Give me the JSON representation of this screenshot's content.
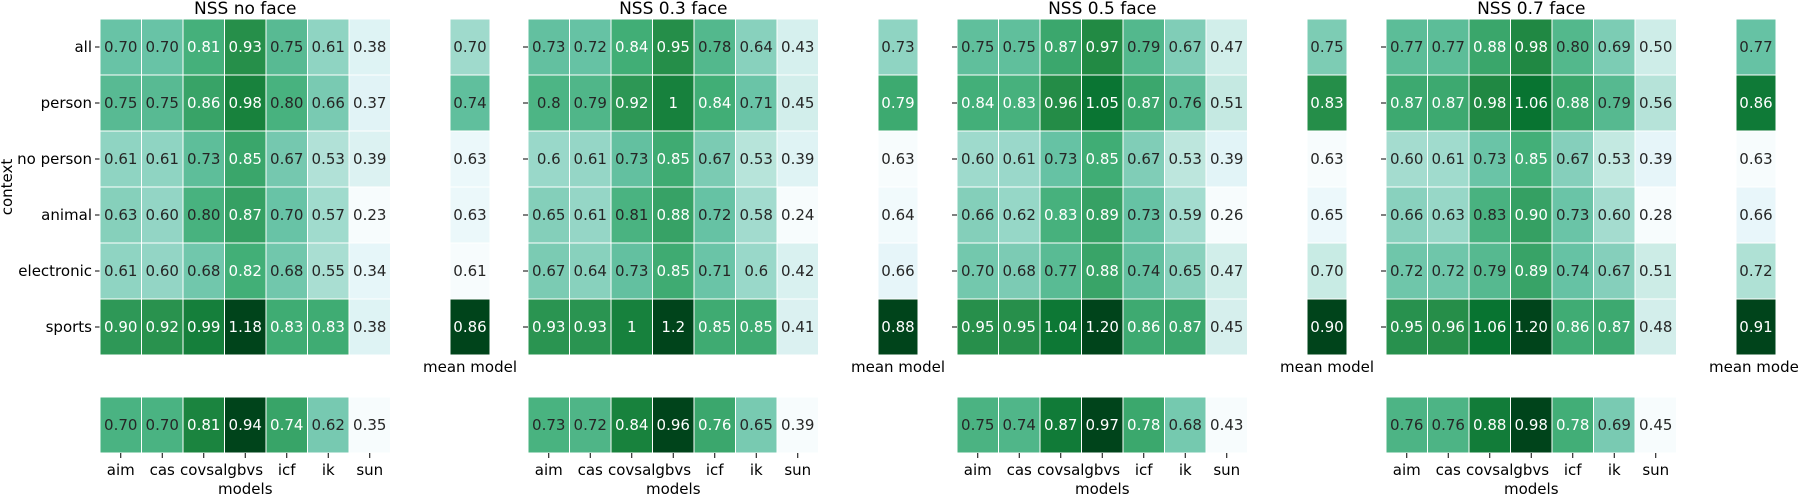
{
  "figure": {
    "y_axis_label": "context",
    "rows": [
      "all",
      "person",
      "no person",
      "animal",
      "electronic",
      "sports"
    ],
    "mean_model_label": "mean model",
    "x_axis_label": "models",
    "colormap": [
      "#f7fcfd",
      "#e5f5f9",
      "#ccece6",
      "#99d8c9",
      "#66c2a4",
      "#41ae76",
      "#238b45",
      "#006d2c",
      "#00441b"
    ]
  },
  "chart_data": [
    {
      "type": "heatmap",
      "title": "NSS no face",
      "x": [
        "aim",
        "cas",
        "covsal",
        "gbvs",
        "icf",
        "ik",
        "sun"
      ],
      "y": [
        "all",
        "person",
        "no person",
        "animal",
        "electronic",
        "sports"
      ],
      "values": [
        [
          "0.70",
          "0.70",
          "0.81",
          "0.93",
          "0.75",
          "0.61",
          "0.38"
        ],
        [
          "0.75",
          "0.75",
          "0.86",
          "0.98",
          "0.80",
          "0.66",
          "0.37"
        ],
        [
          "0.61",
          "0.61",
          "0.73",
          "0.85",
          "0.67",
          "0.53",
          "0.39"
        ],
        [
          "0.63",
          "0.60",
          "0.80",
          "0.87",
          "0.70",
          "0.57",
          "0.23"
        ],
        [
          "0.61",
          "0.60",
          "0.68",
          "0.82",
          "0.68",
          "0.55",
          "0.34"
        ],
        [
          "0.90",
          "0.92",
          "0.99",
          "1.18",
          "0.83",
          "0.83",
          "0.38"
        ]
      ],
      "mean_model": [
        "0.70",
        "0.74",
        "0.63",
        "0.63",
        "0.61",
        "0.86"
      ],
      "mean_context": [
        "0.70",
        "0.70",
        "0.81",
        "0.94",
        "0.74",
        "0.62",
        "0.35"
      ]
    },
    {
      "type": "heatmap",
      "title": "NSS 0.3 face",
      "x": [
        "aim",
        "cas",
        "covsal",
        "gbvs",
        "icf",
        "ik",
        "sun"
      ],
      "y": [
        "all",
        "person",
        "no person",
        "animal",
        "electronic",
        "sports"
      ],
      "values": [
        [
          "0.73",
          "0.72",
          "0.84",
          "0.95",
          "0.78",
          "0.64",
          "0.43"
        ],
        [
          "0.8",
          "0.79",
          "0.92",
          "1",
          "0.84",
          "0.71",
          "0.45"
        ],
        [
          "0.6",
          "0.61",
          "0.73",
          "0.85",
          "0.67",
          "0.53",
          "0.39"
        ],
        [
          "0.65",
          "0.61",
          "0.81",
          "0.88",
          "0.72",
          "0.58",
          "0.24"
        ],
        [
          "0.67",
          "0.64",
          "0.73",
          "0.85",
          "0.71",
          "0.6",
          "0.42"
        ],
        [
          "0.93",
          "0.93",
          "1",
          "1.2",
          "0.85",
          "0.85",
          "0.41"
        ]
      ],
      "mean_model": [
        "0.73",
        "0.79",
        "0.63",
        "0.64",
        "0.66",
        "0.88"
      ],
      "mean_context": [
        "0.73",
        "0.72",
        "0.84",
        "0.96",
        "0.76",
        "0.65",
        "0.39"
      ]
    },
    {
      "type": "heatmap",
      "title": "NSS 0.5 face",
      "x": [
        "aim",
        "cas",
        "covsal",
        "gbvs",
        "icf",
        "ik",
        "sun"
      ],
      "y": [
        "all",
        "person",
        "no person",
        "animal",
        "electronic",
        "sports"
      ],
      "values": [
        [
          "0.75",
          "0.75",
          "0.87",
          "0.97",
          "0.79",
          "0.67",
          "0.47"
        ],
        [
          "0.84",
          "0.83",
          "0.96",
          "1.05",
          "0.87",
          "0.76",
          "0.51"
        ],
        [
          "0.60",
          "0.61",
          "0.73",
          "0.85",
          "0.67",
          "0.53",
          "0.39"
        ],
        [
          "0.66",
          "0.62",
          "0.83",
          "0.89",
          "0.73",
          "0.59",
          "0.26"
        ],
        [
          "0.70",
          "0.68",
          "0.77",
          "0.88",
          "0.74",
          "0.65",
          "0.47"
        ],
        [
          "0.95",
          "0.95",
          "1.04",
          "1.20",
          "0.86",
          "0.87",
          "0.45"
        ]
      ],
      "mean_model": [
        "0.75",
        "0.83",
        "0.63",
        "0.65",
        "0.70",
        "0.90"
      ],
      "mean_context": [
        "0.75",
        "0.74",
        "0.87",
        "0.97",
        "0.78",
        "0.68",
        "0.43"
      ]
    },
    {
      "type": "heatmap",
      "title": "NSS 0.7 face",
      "x": [
        "aim",
        "cas",
        "covsal",
        "gbvs",
        "icf",
        "ik",
        "sun"
      ],
      "y": [
        "all",
        "person",
        "no person",
        "animal",
        "electronic",
        "sports"
      ],
      "values": [
        [
          "0.77",
          "0.77",
          "0.88",
          "0.98",
          "0.80",
          "0.69",
          "0.50"
        ],
        [
          "0.87",
          "0.87",
          "0.98",
          "1.06",
          "0.88",
          "0.79",
          "0.56"
        ],
        [
          "0.60",
          "0.61",
          "0.73",
          "0.85",
          "0.67",
          "0.53",
          "0.39"
        ],
        [
          "0.66",
          "0.63",
          "0.83",
          "0.90",
          "0.73",
          "0.60",
          "0.28"
        ],
        [
          "0.72",
          "0.72",
          "0.79",
          "0.89",
          "0.74",
          "0.67",
          "0.51"
        ],
        [
          "0.95",
          "0.96",
          "1.06",
          "1.20",
          "0.86",
          "0.87",
          "0.48"
        ]
      ],
      "mean_model": [
        "0.77",
        "0.86",
        "0.63",
        "0.66",
        "0.72",
        "0.91"
      ],
      "mean_context": [
        "0.76",
        "0.76",
        "0.88",
        "0.98",
        "0.78",
        "0.69",
        "0.45"
      ]
    }
  ]
}
